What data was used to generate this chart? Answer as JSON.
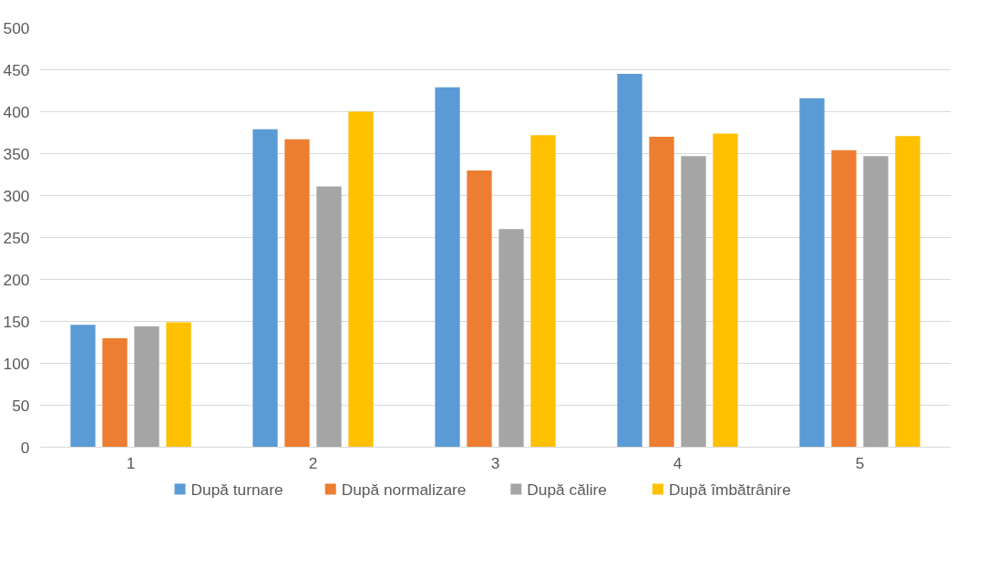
{
  "chart_data": {
    "type": "bar",
    "categories": [
      "1",
      "2",
      "3",
      "4",
      "5"
    ],
    "series": [
      {
        "name": "După turnare",
        "color": "#5b9bd5",
        "values": [
          146,
          379,
          429,
          445,
          416
        ]
      },
      {
        "name": "După normalizare",
        "color": "#ed7d31",
        "values": [
          130,
          367,
          330,
          370,
          354
        ]
      },
      {
        "name": "După călire",
        "color": "#a5a5a5",
        "values": [
          144,
          311,
          260,
          347,
          347
        ]
      },
      {
        "name": "După îmbătrânire",
        "color": "#ffc000",
        "values": [
          149,
          400,
          372,
          374,
          371
        ]
      }
    ],
    "ylim": [
      0,
      500
    ],
    "yticks": [
      0,
      50,
      100,
      150,
      200,
      250,
      300,
      350,
      400,
      450,
      500
    ],
    "grid": "y",
    "legend": "bottom"
  }
}
